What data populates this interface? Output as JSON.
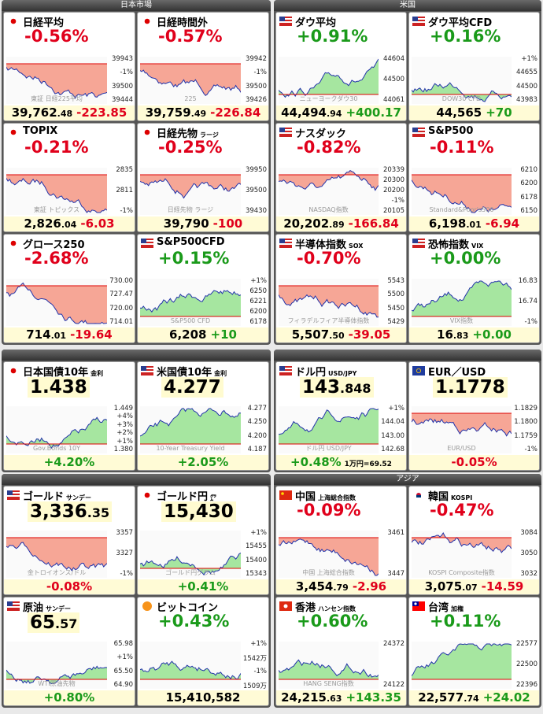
{
  "sections": [
    {
      "title": "日本市場",
      "panels": [
        {
          "flag": "jp",
          "name": "日経平均",
          "pct": "-0.56%",
          "price": "39,762",
          "price_dec": ".48",
          "change": "-223.85",
          "labels": [
            "39943",
            "-1%",
            "39500",
            "39444"
          ],
          "watermark": "東証 日経225平均"
        },
        {
          "flag": "jp",
          "name": "日経時間外",
          "pct": "-0.57%",
          "price": "39,759",
          "price_dec": ".49",
          "change": "-226.84",
          "labels": [
            "39942",
            "-1%",
            "39500",
            "39426"
          ],
          "watermark": "225"
        },
        {
          "flag": "jp",
          "name": "TOPIX",
          "pct": "-0.21%",
          "price": "2,826",
          "price_dec": ".04",
          "change": "-6.03",
          "labels": [
            "2835",
            "2811",
            "-1%"
          ],
          "watermark": "東証 トピックス"
        },
        {
          "flag": "jp",
          "name": "日経先物",
          "sub": "ラージ",
          "pct": "-0.25%",
          "price": "39,790",
          "change": "-100",
          "labels": [
            "39950",
            "39500",
            "39430"
          ],
          "watermark": "日経先物 ラージ"
        },
        {
          "flag": "jp",
          "name": "グロース250",
          "pct": "-2.68%",
          "price": "714",
          "price_dec": ".01",
          "change": "-19.64",
          "labels": [
            "730.00",
            "727.47",
            "720.00",
            "714.01"
          ]
        },
        {
          "flag": "us",
          "name": "S&P500CFD",
          "pct": "+0.15%",
          "price": "6,208",
          "change": "+10",
          "labels": [
            "+1%",
            "6250",
            "6221",
            "6200",
            "6178"
          ],
          "watermark": "S&P500 CFD"
        }
      ]
    },
    {
      "title": "米国",
      "panels": [
        {
          "flag": "us",
          "name": "ダウ平均",
          "pct": "+0.91%",
          "price": "44,494",
          "price_dec": ".94",
          "change": "+400.17",
          "labels": [
            "44604",
            "44500",
            "44061"
          ],
          "watermark": "ニューヨークダウ30"
        },
        {
          "flag": "us",
          "name": "ダウ平均CFD",
          "pct": "+0.16%",
          "price": "44,565",
          "change": "+70",
          "labels": [
            "+1%",
            "44655",
            "44500",
            "43983"
          ],
          "watermark": "DOW30 CFD"
        },
        {
          "flag": "us",
          "name": "ナスダック",
          "pct": "-0.82%",
          "price": "20,202",
          "price_dec": ".89",
          "change": "-166.84",
          "labels": [
            "20339",
            "20300",
            "20200",
            "-1%",
            "20105"
          ],
          "watermark": "NASDAQ指数"
        },
        {
          "flag": "us",
          "name": "S&P500",
          "pct": "-0.11%",
          "price": "6,198",
          "price_dec": ".01",
          "change": "-6.94",
          "labels": [
            "6210",
            "6200",
            "6178",
            "6150"
          ],
          "watermark": "Standard&Poor's500"
        },
        {
          "flag": "us",
          "name": "半導体指数",
          "sub": "SOX",
          "pct": "-0.70%",
          "price": "5,507",
          "price_dec": ".50",
          "change": "-39.05",
          "labels": [
            "5543",
            "5500",
            "5450",
            "5429"
          ],
          "watermark": "フィラデルフィア半導体指数"
        },
        {
          "flag": "us",
          "name": "恐怖指数",
          "sub": "VIX",
          "pct": "+0.00%",
          "price": "16",
          "price_dec": ".83",
          "change": "+0.00",
          "labels": [
            "16.83",
            "16.74",
            "-1%"
          ],
          "watermark": "VIX指数"
        }
      ]
    },
    {
      "panels": [
        {
          "flag": "jp",
          "name": "日本国債10年",
          "sub": "金利",
          "price": "1.438",
          "change": "+4.20%",
          "labels": [
            "1.449",
            "+4%",
            "+3%",
            "+2%",
            "+1%",
            "1.380"
          ],
          "watermark": "Gov.Bonds 10Y"
        },
        {
          "flag": "us",
          "name": "米国債10年",
          "sub": "金利",
          "price": "4.277",
          "change": "+2.05%",
          "labels": [
            "4.277",
            "4.250",
            "4.200",
            "4.187"
          ],
          "watermark": "10-Year Treasury Yield"
        }
      ]
    },
    {
      "panels": [
        {
          "flag": "us",
          "name": "ドル円",
          "sub": "USD/JPY",
          "price": "143",
          "price_dec": ".848",
          "change": "+0.48%",
          "extra": "1万円=69.52",
          "labels": [
            "+1%",
            "144.04",
            "143.00",
            "142.68"
          ],
          "watermark": "ドル円 USD/JPY"
        },
        {
          "flag": "eu",
          "name": "EUR／USD",
          "price": "1.1778",
          "change": "-0.05%",
          "labels": [
            "1.1829",
            "1.1800",
            "1.1759",
            "-1%"
          ],
          "watermark": "EUR/USD"
        }
      ]
    },
    {
      "panels": [
        {
          "flag": "us",
          "name": "ゴールド",
          "sub": "サンデー",
          "price": "3,336",
          "price_dec": ".35",
          "change": "-0.08%",
          "labels": [
            "3357",
            "3327",
            "-1%"
          ],
          "watermark": "金トロイオンス/ドル"
        },
        {
          "flag": "jp",
          "name": "ゴールド円",
          "sub": "㌘",
          "price": "15,430",
          "change": "+0.41%",
          "labels": [
            "+1%",
            "15455",
            "15400",
            "15343"
          ],
          "watermark": "ゴールド円グラム"
        },
        {
          "flag": "us",
          "name": "原油",
          "sub": "サンデー",
          "price": "65",
          "price_dec": ".57",
          "change": "+0.80%",
          "labels": [
            "65.98",
            "+1%",
            "65.50",
            "64.90"
          ],
          "watermark": "WTI原油先物"
        },
        {
          "flag": "btc",
          "name": "ビットコイン",
          "pct": "+0.43%",
          "price": "15,410,582",
          "labels": [
            "+1%",
            "1542万",
            "-1%",
            "1509万"
          ]
        }
      ]
    },
    {
      "title": "アジア",
      "panels": [
        {
          "flag": "cn",
          "name": "中国",
          "sub": "上海総合指数",
          "pct": "-0.09%",
          "price": "3,454",
          "price_dec": ".79",
          "change": "-2.96",
          "labels": [
            "3461",
            "3447"
          ],
          "watermark": "中国 上海総合指数"
        },
        {
          "flag": "kr",
          "name": "韓国",
          "sub": "KOSPI",
          "pct": "-0.47%",
          "price": "3,075",
          "price_dec": ".07",
          "change": "-14.59",
          "labels": [
            "3084",
            "3050",
            "3032"
          ],
          "watermark": "KOSPI Composite指数"
        },
        {
          "flag": "hk",
          "name": "香港",
          "sub": "ハンセン指数",
          "pct": "+0.60%",
          "price": "24,215",
          "price_dec": ".63",
          "change": "+143.35",
          "labels": [
            "24372",
            "24122"
          ],
          "watermark": "HANG SENG指数"
        },
        {
          "flag": "tw",
          "name": "台湾",
          "sub": "加権",
          "pct": "+0.11%",
          "price": "22,577",
          "price_dec": ".74",
          "change": "+24.02",
          "labels": [
            "22577",
            "22500",
            "22396"
          ]
        }
      ]
    }
  ]
}
